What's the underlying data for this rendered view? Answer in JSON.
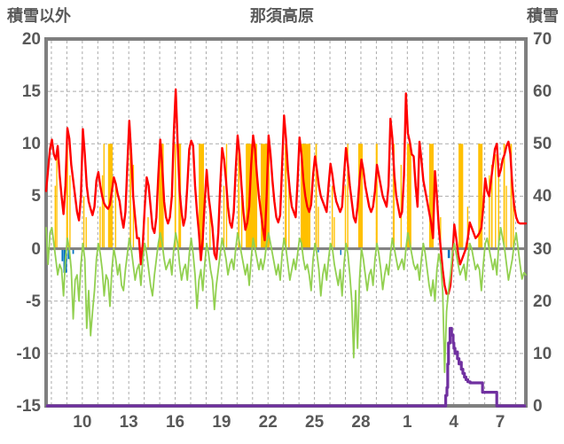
{
  "header": {
    "left_axis_title": "積雪以外",
    "chart_title": "那須高原",
    "right_axis_title": "積雪"
  },
  "left_axis": {
    "ticks": [
      20,
      15,
      10,
      5,
      0,
      -5,
      -10,
      -15
    ],
    "min": -15,
    "max": 20
  },
  "right_axis": {
    "ticks": [
      70,
      60,
      50,
      40,
      30,
      20,
      10,
      0
    ],
    "min": 0,
    "max": 70
  },
  "x_axis": {
    "tick_labels": [
      "10",
      "13",
      "16",
      "19",
      "22",
      "25",
      "28",
      "1",
      "4",
      "7"
    ],
    "label_day_indices": [
      2,
      5,
      8,
      11,
      14,
      17,
      20,
      23,
      26,
      29
    ],
    "days_shown": 31,
    "grid_offset_days": 0.34
  },
  "colors": {
    "temperature_line": "#ff0000",
    "secondary_line": "#92d050",
    "sunshine_bar": "#ffc000",
    "precipitation_bar": "#0070c0",
    "snow_depth_line": "#7030a0",
    "axis_frame": "#7f7f7f",
    "zero_line": "#808080",
    "gridline": "#ababab",
    "label_text": "#595959"
  },
  "chart_data": {
    "type": "line",
    "title": "那須高原",
    "left_axis_label": "積雪以外",
    "right_axis_label": "積雪",
    "left_range": [
      -15,
      20
    ],
    "right_range": [
      0,
      70
    ],
    "x_range_days": 31,
    "sample_step_days": 0.125,
    "series": [
      {
        "name": "temperature-red",
        "axis": "left",
        "color": "#ff0000",
        "width": 2.4,
        "values": [
          5.5,
          7.5,
          9.5,
          10.4,
          9.0,
          8.5,
          9.8,
          7.0,
          5.0,
          3.3,
          6.0,
          11.5,
          10.5,
          8.0,
          6.5,
          5.0,
          3.5,
          2.7,
          5.0,
          11.4,
          9.0,
          6.0,
          4.5,
          3.8,
          3.2,
          4.0,
          6.5,
          7.3,
          6.0,
          5.0,
          4.3,
          4.0,
          3.8,
          4.2,
          5.5,
          6.8,
          6.2,
          5.2,
          4.5,
          3.0,
          2.0,
          3.5,
          8.0,
          12.2,
          9.0,
          5.0,
          3.0,
          1.0,
          1.0,
          -1.5,
          0.5,
          4.0,
          6.8,
          6.0,
          4.0,
          2.0,
          1.5,
          3.0,
          7.0,
          10.4,
          8.0,
          4.5,
          3.0,
          2.4,
          3.0,
          5.0,
          11.0,
          15.2,
          10.0,
          5.5,
          3.5,
          2.2,
          3.0,
          6.0,
          9.5,
          10.3,
          9.8,
          6.0,
          3.5,
          1.5,
          -1.1,
          1.0,
          4.5,
          7.5,
          5.0,
          3.5,
          2.0,
          -0.5,
          -1.0,
          1.5,
          6.0,
          9.6,
          8.5,
          6.5,
          4.0,
          2.5,
          2.0,
          3.5,
          7.5,
          10.8,
          9.0,
          6.0,
          3.5,
          1.8,
          2.5,
          4.0,
          8.0,
          10.8,
          9.5,
          7.0,
          5.0,
          3.5,
          2.0,
          0.8,
          5.0,
          10.8,
          9.0,
          6.5,
          4.5,
          3.0,
          2.5,
          3.2,
          8.0,
          12.7,
          10.5,
          7.5,
          5.5,
          4.0,
          3.5,
          3.0,
          6.5,
          10.6,
          9.0,
          6.5,
          5.0,
          4.0,
          3.5,
          4.2,
          7.0,
          8.8,
          7.5,
          6.0,
          5.0,
          4.5,
          4.0,
          3.5,
          6.0,
          8.1,
          7.0,
          5.5,
          4.5,
          4.0,
          3.5,
          4.0,
          7.0,
          9.6,
          8.0,
          6.0,
          4.5,
          3.0,
          2.5,
          4.0,
          6.5,
          8.5,
          7.5,
          6.0,
          5.0,
          4.0,
          3.5,
          4.0,
          5.5,
          8.0,
          7.0,
          6.0,
          5.0,
          4.5,
          4.0,
          6.0,
          12.4,
          10.5,
          7.0,
          5.0,
          4.0,
          3.0,
          3.5,
          7.0,
          14.8,
          11.0,
          10.2,
          9.0,
          8.8,
          6.0,
          4.0,
          10.2,
          8.5,
          6.5,
          5.5,
          4.5,
          3.5,
          2.5,
          1.0,
          7.4,
          5.0,
          2.0,
          0.0,
          -2.0,
          -3.5,
          -4.3,
          -4.3,
          -3.5,
          -1.0,
          2.3,
          1.0,
          -0.5,
          -1.5,
          -1.0,
          -0.5,
          0.0,
          1.0,
          2.5,
          2.0,
          1.5,
          1.0,
          1.2,
          1.5,
          2.0,
          4.0,
          6.7,
          5.5,
          5.0,
          6.5,
          8.0,
          9.5,
          10.0,
          6.9,
          7.5,
          8.5,
          9.0,
          9.8,
          10.2,
          9.0,
          6.0,
          4.0,
          3.0,
          2.5,
          2.4,
          2.4,
          2.4,
          2.4
        ]
      },
      {
        "name": "secondary-green",
        "axis": "left",
        "color": "#92d050",
        "width": 1.8,
        "values": [
          2.0,
          -1.5,
          1.5,
          2.0,
          0.5,
          -1.0,
          -2.5,
          -1.5,
          -2.0,
          -4.5,
          -1.0,
          1.0,
          0.0,
          -2.0,
          -6.7,
          -3.0,
          -2.5,
          -5.0,
          -1.5,
          0.5,
          -1.0,
          -7.6,
          -4.0,
          -8.3,
          -6.0,
          -4.0,
          -1.0,
          0.5,
          -0.5,
          -2.0,
          -4.5,
          -2.5,
          -3.0,
          -5.5,
          -2.0,
          0.0,
          -1.0,
          -2.5,
          -1.5,
          -3.5,
          -4.0,
          -2.0,
          -0.5,
          1.0,
          0.0,
          -1.5,
          -3.0,
          -2.0,
          -1.5,
          -3.5,
          -1.0,
          0.5,
          -0.5,
          -2.0,
          -3.5,
          -4.5,
          -2.5,
          -1.0,
          0.5,
          1.5,
          0.5,
          -1.0,
          -2.0,
          -1.5,
          -1.0,
          -2.5,
          0.0,
          1.5,
          0.5,
          -1.5,
          -3.0,
          -2.0,
          -1.5,
          -3.0,
          -0.5,
          1.0,
          -0.5,
          -2.5,
          -5.7,
          -3.0,
          -2.0,
          -4.0,
          -1.5,
          0.5,
          -0.5,
          -2.0,
          -3.0,
          -5.8,
          -3.5,
          -2.0,
          -0.5,
          1.0,
          0.0,
          -1.0,
          -2.5,
          -1.5,
          -1.0,
          -2.0,
          0.0,
          1.5,
          0.5,
          -0.5,
          -1.5,
          -2.5,
          -1.5,
          -3.5,
          -1.0,
          1.0,
          0.0,
          -1.0,
          -2.0,
          -1.0,
          -2.0,
          -1.0,
          0.5,
          1.5,
          0.5,
          -0.5,
          -1.5,
          -2.5,
          -1.5,
          -3.0,
          -0.5,
          1.0,
          0.0,
          -1.5,
          -3.0,
          -2.0,
          -1.0,
          -2.0,
          -0.5,
          1.0,
          0.5,
          -1.0,
          -2.0,
          -1.5,
          -2.5,
          -4.0,
          -1.0,
          0.5,
          -0.5,
          -2.0,
          -4.5,
          -2.5,
          -1.5,
          -3.0,
          -1.0,
          0.5,
          0.0,
          -1.5,
          -2.5,
          -3.5,
          -2.0,
          -4.5,
          -1.5,
          0.5,
          -0.5,
          -2.5,
          -5.0,
          -10.4,
          -4.0,
          -9.5,
          -3.0,
          0.0,
          -1.0,
          -2.5,
          -4.0,
          -2.5,
          -2.0,
          -3.5,
          -1.0,
          0.5,
          -0.5,
          -2.0,
          -3.9,
          -2.5,
          -1.5,
          -2.5,
          -0.5,
          1.0,
          0.0,
          -1.0,
          -2.0,
          -1.5,
          -1.0,
          -2.0,
          0.0,
          1.5,
          0.5,
          -0.5,
          -1.5,
          -2.0,
          -1.5,
          -3.0,
          -1.0,
          0.5,
          -0.5,
          -2.0,
          -3.5,
          -4.5,
          -3.0,
          -5.0,
          -2.0,
          -0.5,
          -1.5,
          -4.0,
          -11.8,
          -6.0,
          -4.0,
          -2.5,
          -0.5,
          0.5,
          -0.5,
          -1.5,
          -2.5,
          -2.0,
          -1.5,
          -3.0,
          -1.0,
          0.5,
          0.0,
          -1.0,
          -2.0,
          -1.5,
          -2.0,
          -4.0,
          -1.5,
          0.5,
          1.0,
          0.0,
          -1.0,
          -2.0,
          -1.0,
          -2.5,
          0.5,
          2.0,
          1.0,
          0.0,
          -1.5,
          -3.0,
          -2.0,
          -1.0,
          0.5,
          1.5,
          0.0,
          -1.5,
          -2.9,
          -2.3,
          -2.5
        ]
      }
    ],
    "snow_depth": {
      "name": "snow-depth-purple",
      "axis": "right",
      "color": "#7030a0",
      "width": 3.2,
      "step": true,
      "points": [
        [
          0,
          0
        ],
        [
          25.78,
          0
        ],
        [
          25.82,
          2
        ],
        [
          25.9,
          3.5
        ],
        [
          25.95,
          8
        ],
        [
          26.0,
          12
        ],
        [
          26.1,
          14.8
        ],
        [
          26.2,
          13.5
        ],
        [
          26.3,
          12
        ],
        [
          26.35,
          11
        ],
        [
          26.42,
          10
        ],
        [
          26.48,
          10.3
        ],
        [
          26.58,
          9
        ],
        [
          26.68,
          8
        ],
        [
          26.73,
          8.3
        ],
        [
          26.83,
          7
        ],
        [
          26.93,
          6.2
        ],
        [
          27.03,
          5.5
        ],
        [
          27.13,
          5
        ],
        [
          27.25,
          4.6
        ],
        [
          27.4,
          4.4
        ],
        [
          28.15,
          4.4
        ],
        [
          28.2,
          2.6
        ],
        [
          29.08,
          2.6
        ],
        [
          29.12,
          0
        ],
        [
          31,
          0
        ]
      ]
    },
    "sunshine_bars": {
      "name": "sunshine-orange",
      "axis": "left",
      "color": "#ffc000",
      "baseline": 0,
      "segments": [
        [
          0.55,
          0.6,
          6
        ],
        [
          0.65,
          0.7,
          9
        ],
        [
          1.3,
          1.42,
          10
        ],
        [
          1.5,
          1.55,
          7
        ],
        [
          2.4,
          2.45,
          5
        ],
        [
          2.55,
          2.6,
          3
        ],
        [
          3.45,
          3.5,
          4
        ],
        [
          3.6,
          3.65,
          7
        ],
        [
          3.7,
          3.74,
          10
        ],
        [
          4.0,
          4.3,
          10
        ],
        [
          4.45,
          4.5,
          6
        ],
        [
          5.4,
          5.5,
          10
        ],
        [
          5.6,
          5.64,
          8
        ],
        [
          6.55,
          6.6,
          3
        ],
        [
          7.28,
          7.6,
          10
        ],
        [
          8.3,
          8.4,
          10
        ],
        [
          8.55,
          8.72,
          10
        ],
        [
          9.86,
          10.2,
          10
        ],
        [
          10.55,
          10.6,
          4
        ],
        [
          11.45,
          11.52,
          6
        ],
        [
          11.62,
          11.7,
          10
        ],
        [
          12.4,
          12.5,
          10
        ],
        [
          12.6,
          12.65,
          5
        ],
        [
          12.9,
          13.64,
          10
        ],
        [
          13.87,
          14.44,
          10
        ],
        [
          15.42,
          15.55,
          10
        ],
        [
          15.65,
          15.7,
          7
        ],
        [
          16.45,
          17.08,
          10
        ],
        [
          17.4,
          17.5,
          10
        ],
        [
          17.55,
          17.6,
          4
        ],
        [
          18.45,
          18.5,
          6
        ],
        [
          18.58,
          18.62,
          3
        ],
        [
          19.3,
          19.36,
          6
        ],
        [
          19.45,
          19.5,
          10
        ],
        [
          20.17,
          20.46,
          10
        ],
        [
          21.3,
          21.42,
          10
        ],
        [
          22.4,
          22.52,
          10
        ],
        [
          22.9,
          22.98,
          8
        ],
        [
          23.32,
          23.6,
          10
        ],
        [
          24.75,
          25.04,
          10
        ],
        [
          25.45,
          25.5,
          3
        ],
        [
          26.65,
          26.95,
          10
        ],
        [
          27.2,
          27.25,
          4
        ],
        [
          27.92,
          28.2,
          10
        ],
        [
          28.6,
          28.68,
          7
        ],
        [
          28.75,
          28.85,
          8
        ],
        [
          29.0,
          29.08,
          9
        ],
        [
          29.2,
          29.28,
          7
        ],
        [
          29.55,
          29.65,
          10
        ],
        [
          29.7,
          29.78,
          6
        ],
        [
          30.0,
          30.1,
          10
        ],
        [
          30.15,
          30.2,
          5
        ]
      ]
    },
    "precip_bars": {
      "name": "precipitation-blue",
      "axis": "left",
      "color": "#0070c0",
      "baseline": 0,
      "segments": [
        [
          1.0,
          1.1,
          -1.2
        ],
        [
          1.12,
          1.35,
          -2.3
        ],
        [
          1.4,
          1.55,
          -1.0
        ],
        [
          1.7,
          1.8,
          -0.5
        ],
        [
          17.55,
          17.6,
          -0.35
        ],
        [
          19.0,
          19.06,
          -0.6
        ],
        [
          25.95,
          26.1,
          -0.9
        ]
      ]
    }
  }
}
